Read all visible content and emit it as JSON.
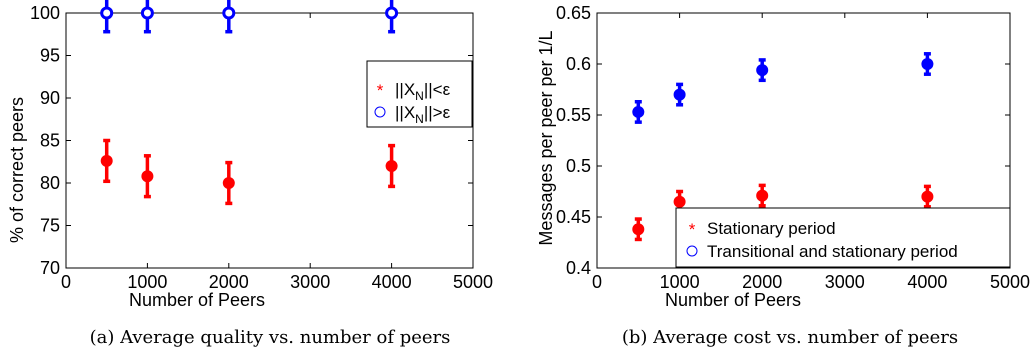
{
  "chart_data": [
    {
      "type": "scatter",
      "caption": "(a) Average quality vs. number of peers",
      "xlabel": "Number of Peers",
      "ylabel": "% of correct peers",
      "xlim": [
        0,
        5000
      ],
      "ylim": [
        70,
        100
      ],
      "xticks": [
        "0",
        "1000",
        "2000",
        "3000",
        "4000",
        "5000"
      ],
      "yticks": [
        "70",
        "75",
        "80",
        "85",
        "90",
        "95",
        "100"
      ],
      "xtick_values": [
        0,
        1000,
        2000,
        3000,
        4000,
        5000
      ],
      "ytick_values": [
        70,
        75,
        80,
        85,
        90,
        95,
        100
      ],
      "grid": false,
      "legend_position": "right",
      "legend": [
        {
          "marker": "*",
          "color": "#ff0000",
          "label": "||X",
          "sub": "N",
          "suffix": "||<ε"
        },
        {
          "marker": "o",
          "color": "#0000ff",
          "label": "||X",
          "sub": "N",
          "suffix": "||>ε"
        }
      ],
      "series": [
        {
          "color": "#ff0000",
          "marker": "filled-circle",
          "points": [
            {
              "x": 500,
              "y": 82.6,
              "err": 2.4
            },
            {
              "x": 1000,
              "y": 80.8,
              "err": 2.4
            },
            {
              "x": 2000,
              "y": 80.0,
              "err": 2.4
            },
            {
              "x": 4000,
              "y": 82.0,
              "err": 2.4
            }
          ]
        },
        {
          "color": "#0000ff",
          "marker": "open-circle",
          "points": [
            {
              "x": 500,
              "y": 100,
              "err": 2.2
            },
            {
              "x": 1000,
              "y": 100,
              "err": 2.2
            },
            {
              "x": 2000,
              "y": 100,
              "err": 2.2
            },
            {
              "x": 4000,
              "y": 100,
              "err": 2.2
            }
          ]
        }
      ]
    },
    {
      "type": "scatter",
      "caption": "(b) Average cost vs. number of peers",
      "xlabel": "Number of Peers",
      "ylabel": "Messages per peer per 1/L",
      "xlim": [
        0,
        5000
      ],
      "ylim": [
        0.4,
        0.65
      ],
      "xticks": [
        "0",
        "1000",
        "2000",
        "3000",
        "4000",
        "5000"
      ],
      "yticks": [
        "0.4",
        "0.45",
        "0.5",
        "0.55",
        "0.6",
        "0.65"
      ],
      "xtick_values": [
        0,
        1000,
        2000,
        3000,
        4000,
        5000
      ],
      "ytick_values": [
        0.4,
        0.45,
        0.5,
        0.55,
        0.6,
        0.65
      ],
      "grid": false,
      "legend_position": "bottom-right",
      "legend": [
        {
          "marker": "*",
          "color": "#ff0000",
          "label": "Stationary period"
        },
        {
          "marker": "o",
          "color": "#0000ff",
          "label": "Transitional and stationary period"
        }
      ],
      "series": [
        {
          "name": "Stationary period",
          "color": "#ff0000",
          "marker": "filled-circle",
          "points": [
            {
              "x": 500,
              "y": 0.438,
              "err": 0.01
            },
            {
              "x": 1000,
              "y": 0.465,
              "err": 0.01
            },
            {
              "x": 2000,
              "y": 0.471,
              "err": 0.01
            },
            {
              "x": 4000,
              "y": 0.47,
              "err": 0.01
            }
          ]
        },
        {
          "name": "Transitional and stationary period",
          "color": "#0000ff",
          "marker": "filled-circle",
          "points": [
            {
              "x": 500,
              "y": 0.553,
              "err": 0.01
            },
            {
              "x": 1000,
              "y": 0.57,
              "err": 0.01
            },
            {
              "x": 2000,
              "y": 0.594,
              "err": 0.01
            },
            {
              "x": 4000,
              "y": 0.6,
              "err": 0.01
            }
          ]
        }
      ]
    }
  ]
}
